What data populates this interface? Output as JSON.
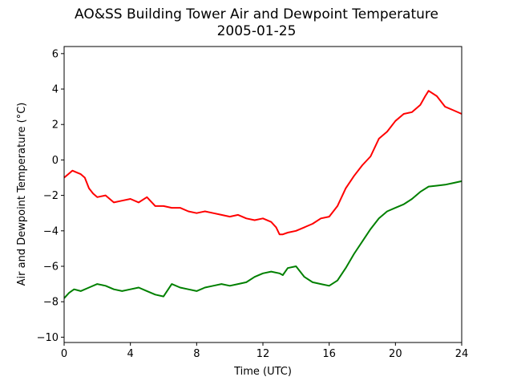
{
  "chart_data": {
    "type": "line",
    "title": "AO&SS Building Tower Air and Dewpoint Temperature",
    "subtitle": "2005-01-25",
    "xlabel": "Time (UTC)",
    "ylabel": "Air and Dewpoint Temperature (°C)",
    "xlim": [
      0,
      24
    ],
    "ylim": [
      -10.3,
      6.4
    ],
    "xticks": [
      0,
      4,
      8,
      12,
      16,
      20,
      24
    ],
    "yticks": [
      -10,
      -8,
      -6,
      -4,
      -2,
      0,
      2,
      4,
      6
    ],
    "grid": false,
    "series": [
      {
        "color": "#ff0000",
        "x": [
          0,
          0.25,
          0.5,
          0.75,
          1,
          1.25,
          1.5,
          1.75,
          2,
          2.5,
          3,
          3.5,
          4,
          4.5,
          5,
          5.5,
          6,
          6.5,
          7,
          7.5,
          8,
          8.5,
          9,
          9.5,
          10,
          10.5,
          11,
          11.5,
          12,
          12.5,
          12.8,
          13,
          13.2,
          13.5,
          14,
          14.5,
          15,
          15.5,
          16,
          16.5,
          17,
          17.5,
          18,
          18.5,
          19,
          19.5,
          20,
          20.5,
          21,
          21.5,
          21.8,
          22,
          22.5,
          23,
          23.5,
          24
        ],
        "y": [
          -1.0,
          -0.8,
          -0.6,
          -0.7,
          -0.8,
          -1.0,
          -1.6,
          -1.9,
          -2.1,
          -2.0,
          -2.4,
          -2.3,
          -2.2,
          -2.4,
          -2.1,
          -2.6,
          -2.6,
          -2.7,
          -2.7,
          -2.9,
          -3.0,
          -2.9,
          -3.0,
          -3.1,
          -3.2,
          -3.1,
          -3.3,
          -3.4,
          -3.3,
          -3.5,
          -3.8,
          -4.2,
          -4.2,
          -4.1,
          -4.0,
          -3.8,
          -3.6,
          -3.3,
          -3.2,
          -2.6,
          -1.6,
          -0.9,
          -0.3,
          0.2,
          1.2,
          1.6,
          2.2,
          2.6,
          2.7,
          3.1,
          3.6,
          3.9,
          3.6,
          3.0,
          2.8,
          2.6
        ]
      },
      {
        "color": "#008000",
        "x": [
          0,
          0.3,
          0.6,
          1,
          1.5,
          2,
          2.5,
          3,
          3.5,
          4,
          4.5,
          5,
          5.5,
          6,
          6.5,
          7,
          7.5,
          8,
          8.5,
          9,
          9.5,
          10,
          10.5,
          11,
          11.5,
          12,
          12.5,
          13,
          13.2,
          13.5,
          14,
          14.5,
          15,
          15.5,
          16,
          16.5,
          17,
          17.5,
          18,
          18.5,
          19,
          19.5,
          20,
          20.5,
          21,
          21.5,
          22,
          22.5,
          23,
          23.5,
          24
        ],
        "y": [
          -7.8,
          -7.5,
          -7.3,
          -7.4,
          -7.2,
          -7.0,
          -7.1,
          -7.3,
          -7.4,
          -7.3,
          -7.2,
          -7.4,
          -7.6,
          -7.7,
          -7.0,
          -7.2,
          -7.3,
          -7.4,
          -7.2,
          -7.1,
          -7.0,
          -7.1,
          -7.0,
          -6.9,
          -6.6,
          -6.4,
          -6.3,
          -6.4,
          -6.5,
          -6.1,
          -6.0,
          -6.6,
          -6.9,
          -7.0,
          -7.1,
          -6.8,
          -6.1,
          -5.3,
          -4.6,
          -3.9,
          -3.3,
          -2.9,
          -2.7,
          -2.5,
          -2.2,
          -1.8,
          -1.5,
          -1.45,
          -1.4,
          -1.3,
          -1.2
        ]
      }
    ]
  }
}
